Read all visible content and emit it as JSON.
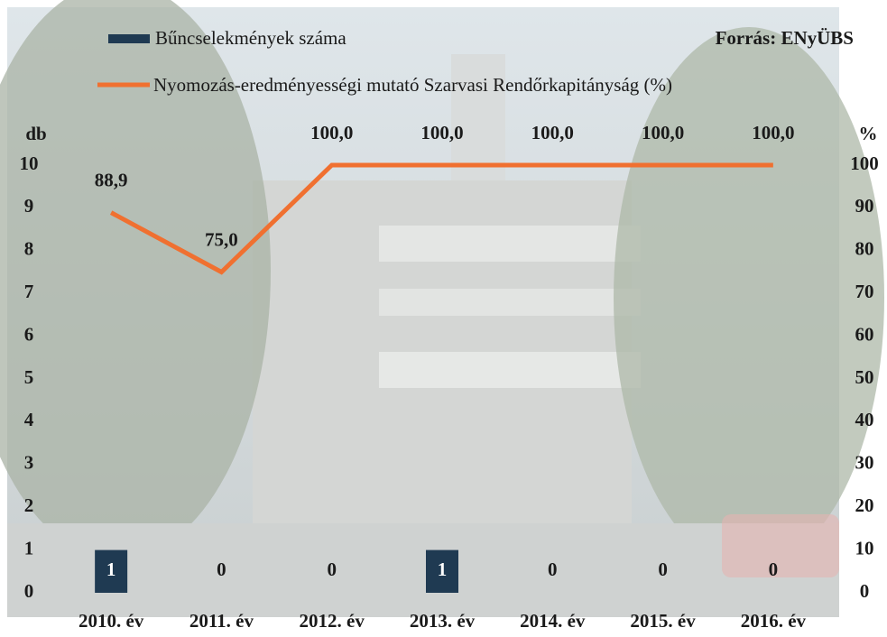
{
  "chart_data": {
    "type": "bar",
    "source": "Forrás: ENyÜBS",
    "ylabel": "db",
    "y2label": "%",
    "categories": [
      "2010. év",
      "2011. év",
      "2012. év",
      "2013. év",
      "2014. év",
      "2015. év",
      "2016. év"
    ],
    "series": [
      {
        "name": "Bűncselekmények száma",
        "type": "bar",
        "color": "#1f3a52",
        "values": [
          1,
          0,
          0,
          1,
          0,
          0,
          0
        ]
      },
      {
        "name": "Nyomozás-eredményességi mutató Szarvasi Rendőrkapitányság (%)",
        "type": "line",
        "axis": "y2",
        "color": "#f07030",
        "values": [
          88.9,
          75.0,
          100.0,
          100.0,
          100.0,
          100.0,
          100.0
        ],
        "value_labels": [
          "88,9",
          "75,0",
          "100,0",
          "100,0",
          "100,0",
          "100,0",
          "100,0"
        ]
      }
    ],
    "ylim": [
      0,
      10
    ],
    "yticks": [
      0,
      1,
      2,
      3,
      4,
      5,
      6,
      7,
      8,
      9,
      10
    ],
    "y2lim": [
      0,
      100
    ],
    "y2ticks": [
      0,
      10,
      20,
      30,
      40,
      50,
      60,
      70,
      80,
      90,
      100
    ],
    "grid": false
  }
}
